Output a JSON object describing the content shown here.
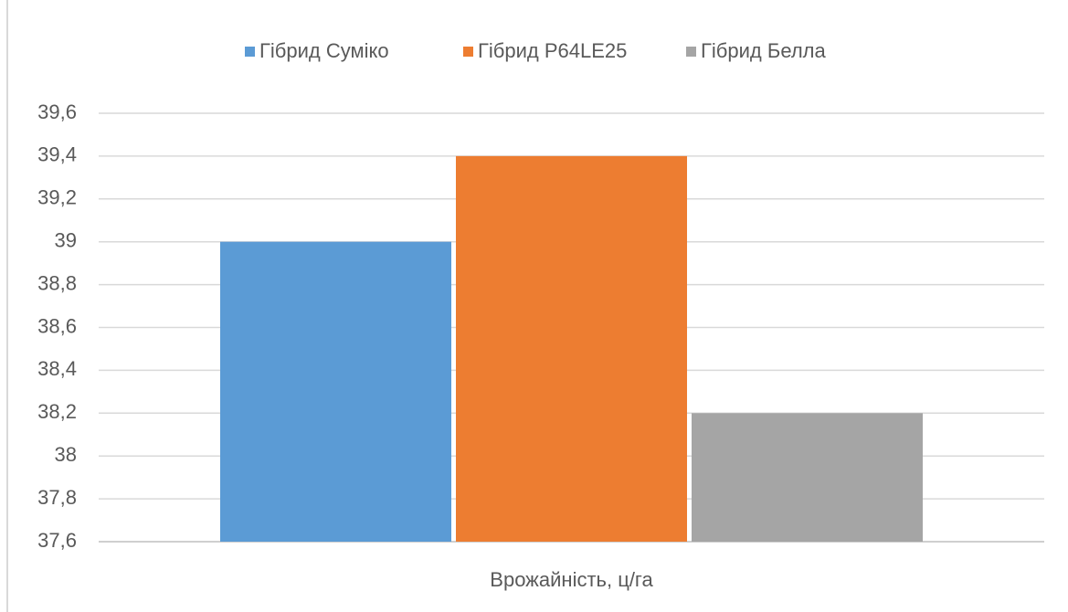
{
  "chart_data": {
    "type": "bar",
    "categories": [
      "Врожайність, ц/га"
    ],
    "series": [
      {
        "name": "Гібрид Суміко",
        "color": "#5b9bd5",
        "values": [
          39
        ]
      },
      {
        "name": "Гібрид P64LE25",
        "color": "#ed7d31",
        "values": [
          39.4
        ]
      },
      {
        "name": "Гібрид Белла",
        "color": "#a5a5a5",
        "values": [
          38.2
        ]
      }
    ],
    "ylim": [
      37.6,
      39.6
    ],
    "yticks": [
      {
        "value": 37.6,
        "label": "37,6"
      },
      {
        "value": 37.8,
        "label": "37,8"
      },
      38,
      {
        "value": 38.2,
        "label": "38,2"
      },
      {
        "value": 38.4,
        "label": "38,4"
      },
      {
        "value": 38.6,
        "label": "38,6"
      },
      {
        "value": 38.8,
        "label": "38,8"
      },
      39,
      {
        "value": 39.2,
        "label": "39,2"
      },
      {
        "value": 39.4,
        "label": "39,4"
      },
      {
        "value": 39.6,
        "label": "39,6"
      }
    ],
    "grid": true,
    "legend": "top"
  }
}
